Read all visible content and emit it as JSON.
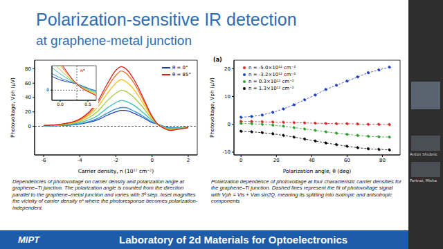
{
  "slide": {
    "title": "Polarization-sensitive IR detection",
    "subtitle": "at graphene-metal junction",
    "captions": [
      "Dependencies of photovoltage on carrier density and polarization angle at graphene–Ti junction. The polarization angle is counted from the direction parallel to the graphene–metal junction and varies with 3º step. Inset magnifies the vicinity of carrier density n* where the photoresponse becomes polarization-independent.",
      "Polarization dependence of photovoltage at four characteristic carrier densities for the graphene–Ti junction. Dashed lines represent the fit of photovoltage signal with Vph = Vis + Van sin2Q, meaning its splitting into isotropic and anisotropic components"
    ],
    "footer": {
      "logo": "MIPT",
      "text": "Laboratory of 2d Materials for Optoelectronics"
    },
    "sidebar": {
      "participants": [
        "Anton Shubnic",
        "Portnoi, Misha"
      ]
    }
  },
  "chart_data": [
    {
      "type": "line",
      "x_label": "Carrier density, n (10¹² cm⁻²)",
      "y_label": "Photovoltage, Vph (μV)",
      "x": [
        -6,
        -5,
        -4,
        -3,
        -2.5,
        -2,
        -1.7,
        -1.5,
        -1,
        -0.5,
        0,
        0.3,
        0.6,
        1,
        1.5,
        2
      ],
      "series": [
        {
          "name": "θ = 0°",
          "color": "#1f3fbf",
          "values": [
            0.5,
            1,
            3,
            9,
            15,
            20,
            22,
            22,
            18,
            12,
            5,
            3,
            0,
            -2,
            -2,
            -1
          ]
        },
        {
          "color": "#2f8fd8",
          "values": [
            0.5,
            1.2,
            3.5,
            11,
            18,
            24,
            26,
            26,
            21,
            14,
            6,
            3,
            0,
            -2.2,
            -2,
            -1
          ]
        },
        {
          "color": "#3cbfb0",
          "values": [
            0.6,
            1.5,
            5,
            15,
            25,
            33,
            36,
            35,
            29,
            19,
            8,
            3,
            -0.5,
            -3,
            -2.5,
            -1.2
          ]
        },
        {
          "color": "#a4c93a",
          "values": [
            0.8,
            2,
            6.5,
            21,
            35,
            46,
            50,
            49,
            40,
            26,
            10,
            3,
            -1,
            -4,
            -3,
            -1.5
          ]
        },
        {
          "color": "#f0c020",
          "values": [
            0.9,
            2.5,
            8,
            27,
            45,
            60,
            65,
            63,
            51,
            32,
            12,
            3,
            -1.5,
            -5,
            -3.5,
            -1.8
          ]
        },
        {
          "color": "#f07020",
          "values": [
            1,
            2.8,
            9,
            32,
            53,
            71,
            77,
            75,
            60,
            37,
            13,
            3,
            -2,
            -5.6,
            -3.8,
            -2
          ]
        },
        {
          "name": "θ = 85°",
          "color": "#d62020",
          "values": [
            1,
            3,
            10,
            35,
            58,
            78,
            83,
            81,
            65,
            40,
            14,
            3,
            -2,
            -6,
            -4,
            -2
          ]
        }
      ],
      "xlim": [
        -6.5,
        2.5
      ],
      "xticks": [
        -6,
        -4,
        -2,
        0,
        2
      ],
      "ylim": [
        -40,
        92
      ],
      "yticks": [
        0,
        20,
        40,
        60,
        80
      ],
      "legend": "upper right",
      "reference_line": 0,
      "inset": {
        "xlim": [
          -0.15,
          0.65
        ],
        "xticks": [
          {
            "value": 0,
            "label": "0.0"
          },
          {
            "value": 0.5,
            "label": "0.5"
          }
        ],
        "ylim": [
          -5,
          12
        ],
        "yticks": [
          0
        ],
        "annotation": "n*",
        "n_star": 0.3
      }
    },
    {
      "type": "line",
      "panel_label": "(a)",
      "x_label": "Polarization angle, θ (deg)",
      "y_label": "Photovoltage, Vph (μV)",
      "x": [
        0,
        6,
        12,
        18,
        24,
        30,
        36,
        42,
        48,
        54,
        60,
        66,
        72,
        78,
        84
      ],
      "series": [
        {
          "name": "n = -5.0×10¹² cm⁻²",
          "color": "#d62728",
          "marker": "o",
          "line_style": "dashed",
          "values": [
            1.0,
            1.0,
            0.9,
            0.8,
            0.7,
            0.6,
            0.5,
            0.4,
            0.3,
            0.2,
            0.2,
            0.1,
            0.0,
            0.0,
            -0.1
          ]
        },
        {
          "name": "n = -3.2×10¹² cm⁻²",
          "color": "#1f3fbf",
          "marker": "o",
          "line_style": "dashed",
          "values": [
            2.5,
            2.8,
            3.3,
            4.3,
            5.5,
            7,
            8.8,
            10.5,
            12.5,
            14,
            15.5,
            17,
            18.5,
            19.5,
            20.5
          ]
        },
        {
          "name": "n = 0.3×10¹² cm⁻²",
          "color": "#2ca02c",
          "marker": "o",
          "line_style": "dashed",
          "values": [
            0.3,
            0.2,
            0,
            -0.3,
            -0.7,
            -1.2,
            -1.7,
            -2.2,
            -2.7,
            -3.2,
            -3.6,
            -4,
            -4.3,
            -4.5,
            -4.6
          ]
        },
        {
          "name": "n = 1.3×10¹² cm⁻²",
          "color": "#000000",
          "marker": "o",
          "line_style": "dashed",
          "values": [
            -2.5,
            -2.7,
            -3,
            -3.4,
            -4,
            -4.6,
            -5.3,
            -6,
            -6.7,
            -7.3,
            -7.9,
            -8.4,
            -8.8,
            -9,
            -9.2
          ]
        }
      ],
      "xlim": [
        -4,
        90
      ],
      "xticks": [
        0,
        20,
        40,
        60,
        80
      ],
      "ylim": [
        -11,
        23
      ],
      "yticks": [
        -10,
        0,
        10,
        20
      ],
      "legend": "upper left"
    }
  ]
}
